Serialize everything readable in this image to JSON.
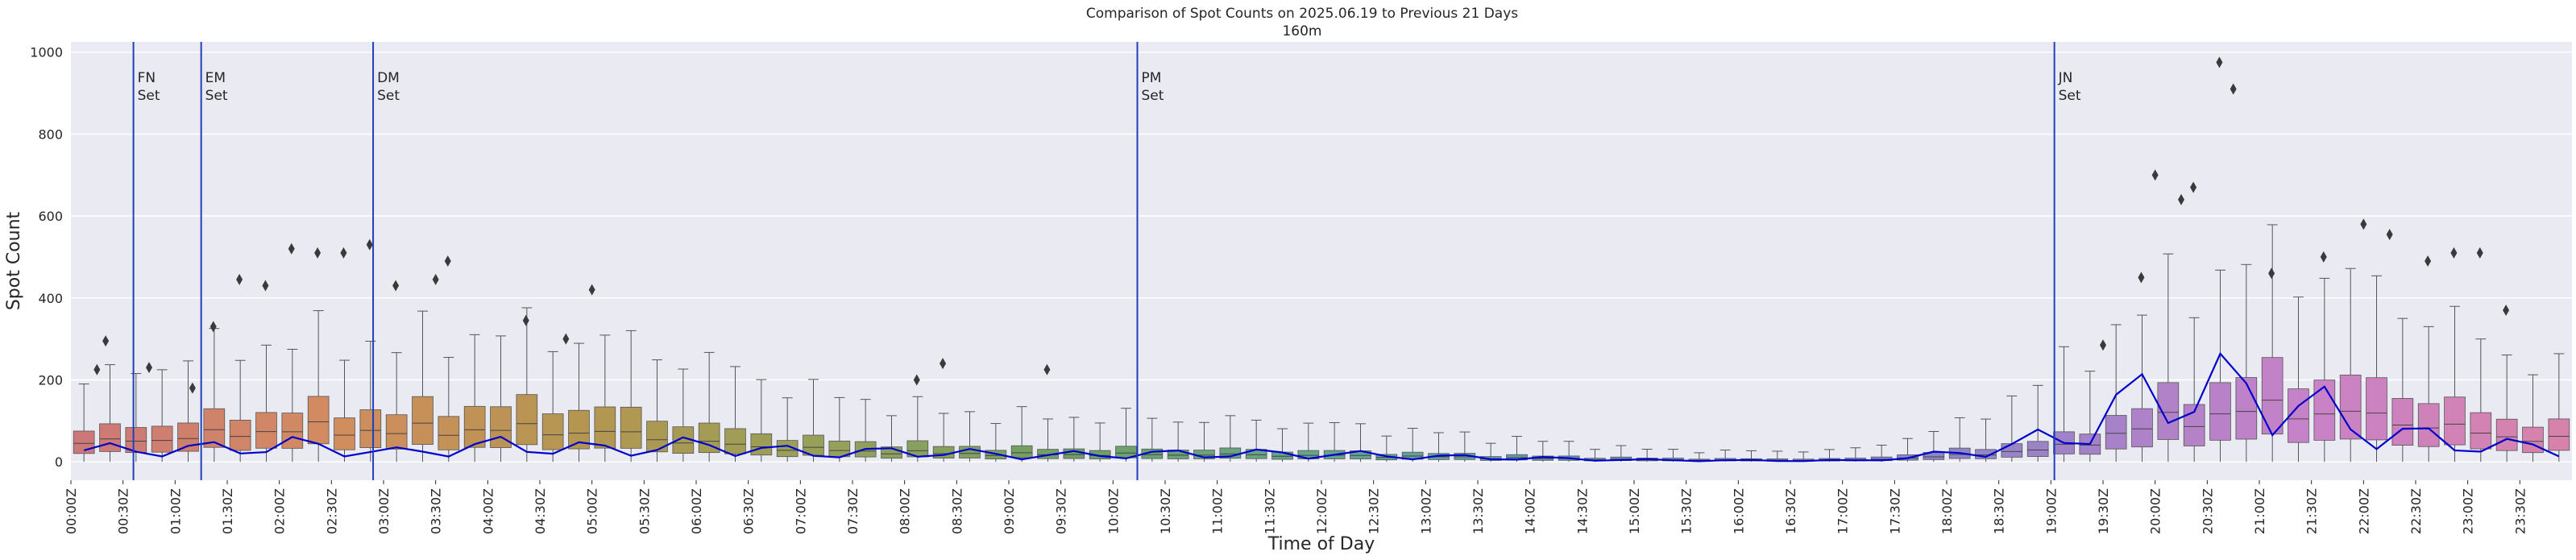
{
  "chart_data": {
    "type": "box",
    "title": "Comparison of Spot Counts on 2025.06.19 to Previous 21 Days",
    "subtitle": "160m",
    "xlabel": "Time of Day",
    "ylabel": "Spot Count",
    "ylim": [
      -45,
      1025
    ],
    "yticks": [
      0,
      200,
      400,
      600,
      800,
      1000
    ],
    "xticks": [
      "00:00Z",
      "00:30Z",
      "01:00Z",
      "01:30Z",
      "02:00Z",
      "02:30Z",
      "03:00Z",
      "03:30Z",
      "04:00Z",
      "04:30Z",
      "05:00Z",
      "05:30Z",
      "06:00Z",
      "06:30Z",
      "07:00Z",
      "07:30Z",
      "08:00Z",
      "08:30Z",
      "09:00Z",
      "09:30Z",
      "10:00Z",
      "10:30Z",
      "11:00Z",
      "11:30Z",
      "12:00Z",
      "12:30Z",
      "13:00Z",
      "13:30Z",
      "14:00Z",
      "14:30Z",
      "15:00Z",
      "15:30Z",
      "16:00Z",
      "16:30Z",
      "17:00Z",
      "17:30Z",
      "18:00Z",
      "18:30Z",
      "19:00Z",
      "19:30Z",
      "20:00Z",
      "20:30Z",
      "21:00Z",
      "21:30Z",
      "22:00Z",
      "22:30Z",
      "23:00Z",
      "23:30Z"
    ],
    "bins_per_hour": 4,
    "grid": true,
    "series": [
      {
        "name": "",
        "kind": "box",
        "hourly_median": [
          45,
          60,
          80,
          75,
          80,
          72,
          45,
          30,
          22,
          18,
          18,
          17,
          15,
          12,
          8,
          5,
          4,
          4,
          15,
          35,
          100,
          130,
          110,
          70
        ],
        "hourly_q3": [
          75,
          100,
          130,
          125,
          140,
          130,
          85,
          55,
          42,
          32,
          32,
          30,
          26,
          20,
          14,
          9,
          7,
          8,
          28,
          60,
          160,
          220,
          190,
          120
        ],
        "hourly_max": [
          190,
          260,
          300,
          290,
          320,
          300,
          240,
          170,
          130,
          110,
          110,
          100,
          90,
          70,
          50,
          30,
          25,
          30,
          90,
          230,
          420,
          500,
          420,
          300
        ]
      },
      {
        "name": "",
        "kind": "line",
        "color": "#0000cc",
        "hourly": [
          28,
          30,
          40,
          22,
          40,
          30,
          40,
          20,
          25,
          15,
          18,
          20,
          18,
          12,
          8,
          4,
          3,
          3,
          20,
          60,
          180,
          160,
          70,
          40
        ]
      }
    ],
    "vlines": [
      {
        "time": "00:36Z",
        "label": "FN\nSet"
      },
      {
        "time": "01:15Z",
        "label": "EM\nSet"
      },
      {
        "time": "02:54Z",
        "label": "DM\nSet"
      },
      {
        "time": "10:14Z",
        "label": "PM\nSet"
      },
      {
        "time": "19:02Z",
        "label": "JN\nSet"
      }
    ],
    "outliers": [
      {
        "time": "00:15Z",
        "value": 225
      },
      {
        "time": "00:20Z",
        "value": 295
      },
      {
        "time": "00:45Z",
        "value": 230
      },
      {
        "time": "01:10Z",
        "value": 180
      },
      {
        "time": "01:22Z",
        "value": 330
      },
      {
        "time": "01:37Z",
        "value": 445
      },
      {
        "time": "01:52Z",
        "value": 430
      },
      {
        "time": "02:07Z",
        "value": 520
      },
      {
        "time": "02:22Z",
        "value": 510
      },
      {
        "time": "02:37Z",
        "value": 510
      },
      {
        "time": "02:52Z",
        "value": 530
      },
      {
        "time": "03:07Z",
        "value": 430
      },
      {
        "time": "03:30Z",
        "value": 445
      },
      {
        "time": "03:37Z",
        "value": 490
      },
      {
        "time": "04:22Z",
        "value": 345
      },
      {
        "time": "04:45Z",
        "value": 300
      },
      {
        "time": "05:00Z",
        "value": 420
      },
      {
        "time": "08:07Z",
        "value": 200
      },
      {
        "time": "08:22Z",
        "value": 240
      },
      {
        "time": "09:22Z",
        "value": 225
      },
      {
        "time": "19:30Z",
        "value": 285
      },
      {
        "time": "19:52Z",
        "value": 450
      },
      {
        "time": "20:00Z",
        "value": 700
      },
      {
        "time": "20:15Z",
        "value": 640
      },
      {
        "time": "20:22Z",
        "value": 670
      },
      {
        "time": "20:37Z",
        "value": 975
      },
      {
        "time": "20:45Z",
        "value": 910
      },
      {
        "time": "21:07Z",
        "value": 460
      },
      {
        "time": "21:37Z",
        "value": 500
      },
      {
        "time": "22:00Z",
        "value": 580
      },
      {
        "time": "22:15Z",
        "value": 555
      },
      {
        "time": "22:37Z",
        "value": 490
      },
      {
        "time": "22:52Z",
        "value": 510
      },
      {
        "time": "23:07Z",
        "value": 510
      },
      {
        "time": "23:22Z",
        "value": 370
      }
    ]
  }
}
